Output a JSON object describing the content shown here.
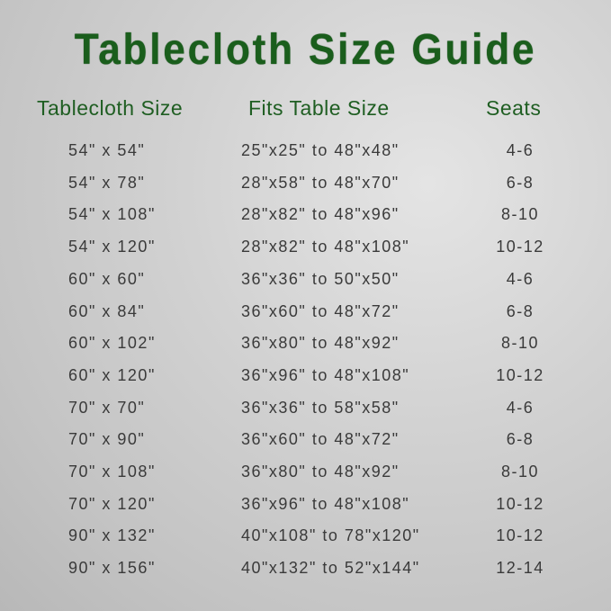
{
  "title": "Tablecloth Size Guide",
  "headers": [
    "Tablecloth Size",
    "Fits Table Size",
    "Seats"
  ],
  "rows": [
    {
      "size": "54\" x 54\"",
      "fits": "25\"x25\" to 48\"x48\"",
      "seats": "4-6"
    },
    {
      "size": "54\" x 78\"",
      "fits": "28\"x58\" to 48\"x70\"",
      "seats": "6-8"
    },
    {
      "size": "54\" x 108\"",
      "fits": "28\"x82\" to 48\"x96\"",
      "seats": "8-10"
    },
    {
      "size": "54\" x 120\"",
      "fits": "28\"x82\" to 48\"x108\"",
      "seats": "10-12"
    },
    {
      "size": "60\" x 60\"",
      "fits": "36\"x36\" to 50\"x50\"",
      "seats": "4-6"
    },
    {
      "size": "60\" x 84\"",
      "fits": "36\"x60\" to 48\"x72\"",
      "seats": "6-8"
    },
    {
      "size": "60\" x 102\"",
      "fits": "36\"x80\" to 48\"x92\"",
      "seats": "8-10"
    },
    {
      "size": "60\" x 120\"",
      "fits": "36\"x96\" to 48\"x108\"",
      "seats": "10-12"
    },
    {
      "size": "70\" x 70\"",
      "fits": "36\"x36\" to 58\"x58\"",
      "seats": "4-6"
    },
    {
      "size": "70\" x 90\"",
      "fits": "36\"x60\" to 48\"x72\"",
      "seats": "6-8"
    },
    {
      "size": "70\" x 108\"",
      "fits": "36\"x80\" to 48\"x92\"",
      "seats": "8-10"
    },
    {
      "size": "70\" x 120\"",
      "fits": "36\"x96\" to 48\"x108\"",
      "seats": "10-12"
    },
    {
      "size": "90\" x 132\"",
      "fits": "40\"x108\" to 78\"x120\"",
      "seats": "10-12"
    },
    {
      "size": "90\" x 156\"",
      "fits": "40\"x132\" to 52\"x144\"",
      "seats": "12-14"
    }
  ],
  "colors": {
    "title": "#1a5e1c",
    "header": "#1f5e22",
    "text": "#3a3a3a"
  }
}
